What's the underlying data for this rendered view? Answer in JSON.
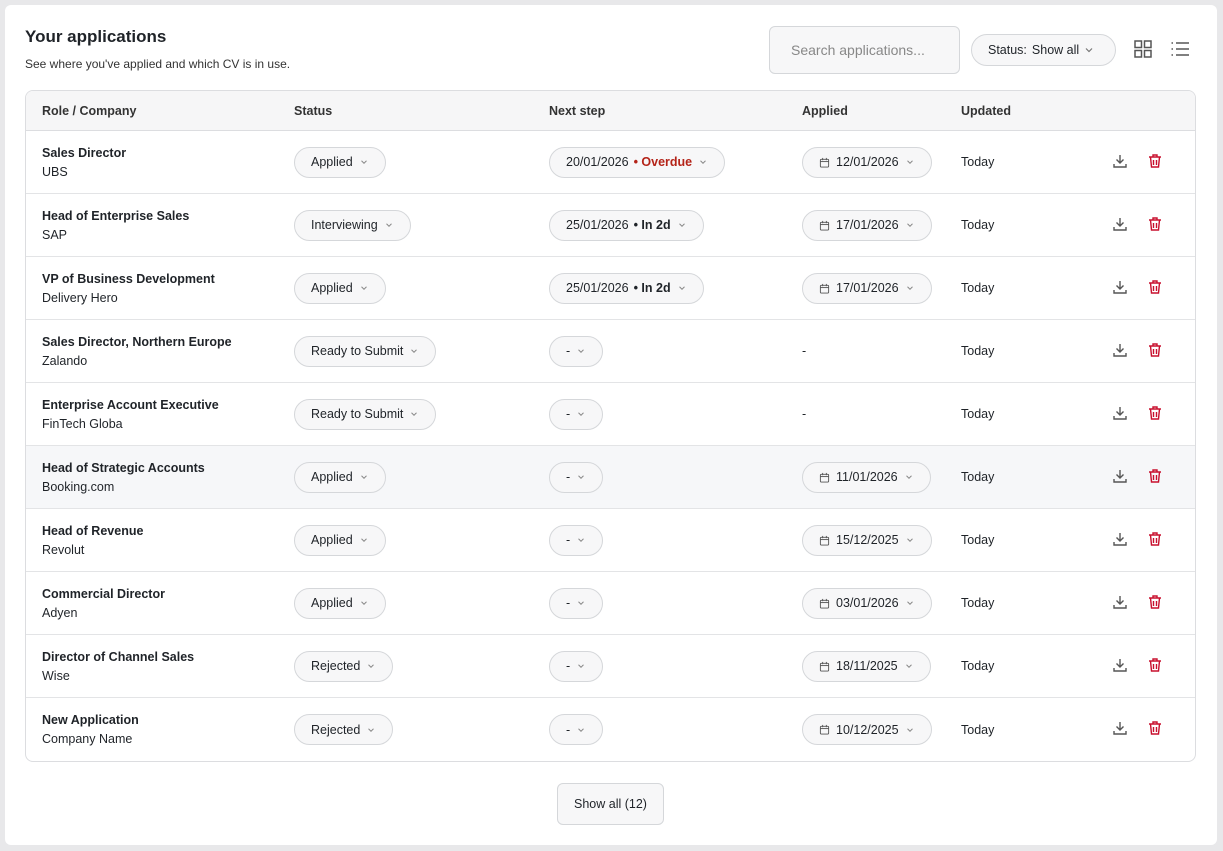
{
  "header": {
    "title": "Your applications",
    "subtitle": "See where you've applied and which CV is in use."
  },
  "search": {
    "placeholder": "Search applications..."
  },
  "filter": {
    "label": "Status:",
    "value": "Show all"
  },
  "table": {
    "columns": [
      "Role / Company",
      "Status",
      "Next step",
      "Applied",
      "Updated"
    ],
    "rows": [
      {
        "role": "Sales Director",
        "company": "UBS",
        "status": "Applied",
        "next_step": "20/01/2026",
        "next_note": "• Overdue",
        "note_color": "#b42318",
        "applied": "12/01/2026",
        "updated": "Today"
      },
      {
        "role": "Head of Enterprise Sales",
        "company": "SAP",
        "status": "Interviewing",
        "next_step": "25/01/2026",
        "next_note": "• In 2d",
        "applied": "17/01/2026",
        "updated": "Today"
      },
      {
        "role": "VP of Business Development",
        "company": "Delivery Hero",
        "status": "Applied",
        "next_step": "25/01/2026",
        "next_note": "• In 2d",
        "applied": "17/01/2026",
        "updated": "Today"
      },
      {
        "role": "Sales Director, Northern Europe",
        "company": "Zalando",
        "status": "Ready to Submit",
        "next_step": "-",
        "applied": "-",
        "updated": "Today"
      },
      {
        "role": "Enterprise Account Executive",
        "company": "FinTech Globa",
        "status": "Ready to Submit",
        "next_step": "-",
        "applied": "-",
        "updated": "Today"
      },
      {
        "role": "Head of Strategic Accounts",
        "company": "Booking.com",
        "status": "Applied",
        "next_step": "-",
        "applied": "11/01/2026",
        "updated": "Today",
        "highlighted": true
      },
      {
        "role": "Head of Revenue",
        "company": "Revolut",
        "status": "Applied",
        "next_step": "-",
        "applied": "15/12/2025",
        "updated": "Today"
      },
      {
        "role": "Commercial Director",
        "company": "Adyen",
        "status": "Applied",
        "next_step": "-",
        "applied": "03/01/2026",
        "updated": "Today"
      },
      {
        "role": "Director of Channel Sales",
        "company": "Wise",
        "status": "Rejected",
        "next_step": "-",
        "applied": "18/11/2025",
        "updated": "Today"
      },
      {
        "role": "New Application",
        "company": "Company Name",
        "status": "Rejected",
        "next_step": "-",
        "applied": "10/12/2025",
        "updated": "Today"
      }
    ]
  },
  "footer": {
    "button": "Show all (12)"
  }
}
